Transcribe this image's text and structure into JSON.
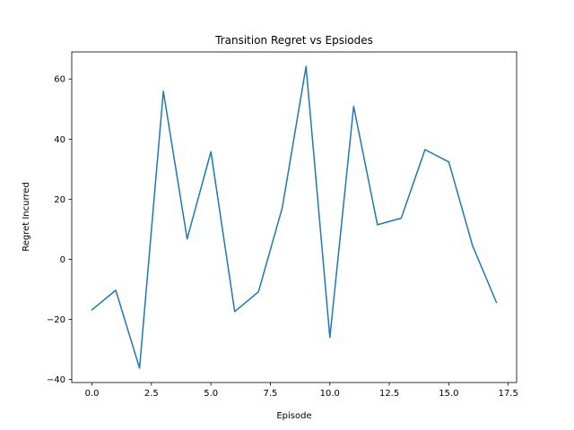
{
  "chart_data": {
    "type": "line",
    "title": "Transition Regret vs Epsiodes",
    "xlabel": "Episode",
    "ylabel": "Regret Incurred",
    "xlim": [
      -0.85,
      17.85
    ],
    "ylim": [
      -41,
      69
    ],
    "xticks": [
      0.0,
      2.5,
      5.0,
      7.5,
      10.0,
      12.5,
      15.0,
      17.5
    ],
    "xtick_labels": [
      "0.0",
      "2.5",
      "5.0",
      "7.5",
      "10.0",
      "12.5",
      "15.0",
      "17.5"
    ],
    "yticks": [
      -40,
      -20,
      0,
      20,
      40,
      60
    ],
    "ytick_labels": [
      "−40",
      "−20",
      "0",
      "20",
      "40",
      "60"
    ],
    "grid": false,
    "series": [
      {
        "color": "#1f77b4",
        "x": [
          0,
          1,
          2,
          3,
          4,
          5,
          6,
          7,
          8,
          9,
          10,
          11,
          12,
          13,
          14,
          15,
          16,
          17
        ],
        "y": [
          -16.8,
          -10.3,
          -36.2,
          55.9,
          6.8,
          35.8,
          -17.4,
          -10.8,
          17.2,
          64.2,
          -26.0,
          50.9,
          11.5,
          13.7,
          36.5,
          32.4,
          4.5,
          -14.3
        ]
      }
    ]
  }
}
